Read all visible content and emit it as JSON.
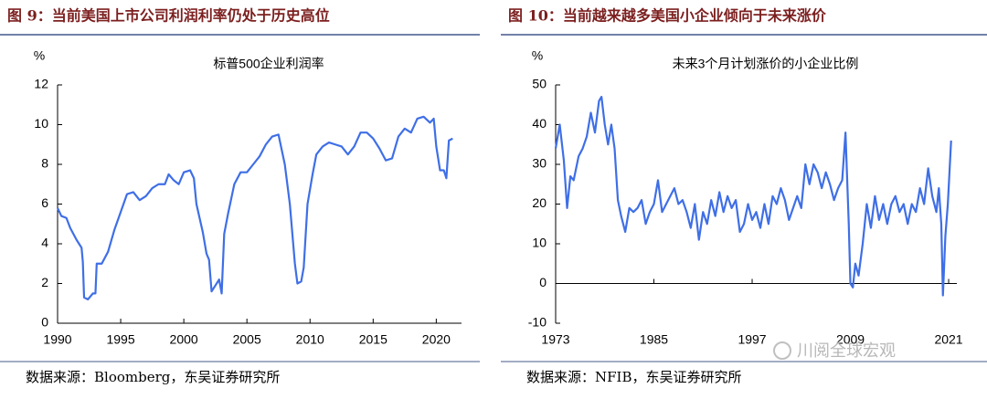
{
  "chart_data": [
    {
      "type": "line",
      "figure_title": "图 9：当前美国上市公司利润利率仍处于历史高位",
      "title": "标普500企业利润率",
      "y_label": "%",
      "source": "数据来源：Bloomberg，东吴证券研究所",
      "x": [
        1990.0,
        1990.3,
        1990.7,
        1991.0,
        1991.5,
        1991.9,
        1992.0,
        1992.1,
        1992.4,
        1992.8,
        1993.0,
        1993.1,
        1993.5,
        1994.0,
        1994.5,
        1995.0,
        1995.5,
        1996.0,
        1996.5,
        1997.0,
        1997.5,
        1998.0,
        1998.5,
        1998.8,
        1999.2,
        1999.6,
        2000.0,
        2000.5,
        2000.8,
        2001.0,
        2001.5,
        2001.8,
        2002.0,
        2002.2,
        2002.5,
        2002.8,
        2003.0,
        2003.2,
        2003.5,
        2004.0,
        2004.5,
        2005.0,
        2005.5,
        2006.0,
        2006.5,
        2007.0,
        2007.5,
        2007.8,
        2008.0,
        2008.4,
        2008.8,
        2009.0,
        2009.3,
        2009.5,
        2009.8,
        2010.2,
        2010.5,
        2011.0,
        2011.5,
        2012.0,
        2012.5,
        2013.0,
        2013.5,
        2014.0,
        2014.5,
        2015.0,
        2015.5,
        2016.0,
        2016.5,
        2017.0,
        2017.5,
        2018.0,
        2018.5,
        2019.0,
        2019.5,
        2019.8,
        2020.0,
        2020.3,
        2020.6,
        2020.8,
        2021.0,
        2021.3
      ],
      "series": [
        {
          "color": "#3f6fe6",
          "values": [
            5.8,
            5.4,
            5.3,
            4.8,
            4.2,
            3.8,
            3.1,
            1.3,
            1.2,
            1.5,
            1.5,
            3.0,
            3.0,
            3.6,
            4.7,
            5.6,
            6.5,
            6.6,
            6.2,
            6.4,
            6.8,
            7.0,
            7.0,
            7.5,
            7.2,
            7.0,
            7.6,
            7.7,
            7.3,
            6.0,
            4.6,
            3.5,
            3.2,
            1.6,
            1.9,
            2.2,
            1.5,
            4.5,
            5.5,
            7.0,
            7.6,
            7.6,
            8.0,
            8.4,
            9.0,
            9.4,
            9.5,
            8.6,
            8.0,
            6.0,
            3.0,
            2.0,
            2.1,
            2.8,
            6.0,
            7.5,
            8.5,
            8.9,
            9.1,
            9.0,
            8.9,
            8.5,
            8.9,
            9.6,
            9.6,
            9.3,
            8.8,
            8.2,
            8.3,
            9.4,
            9.8,
            9.6,
            10.3,
            10.4,
            10.1,
            10.3,
            8.9,
            7.7,
            7.7,
            7.3,
            9.2,
            9.3
          ]
        }
      ],
      "xlim": [
        1990,
        2022
      ],
      "xticks": [
        1990,
        1995,
        2000,
        2005,
        2010,
        2015,
        2020
      ],
      "ylim": [
        0,
        12
      ],
      "yticks": [
        0,
        2,
        4,
        6,
        8,
        10,
        12
      ],
      "grid": false
    },
    {
      "type": "line",
      "figure_title": "图 10：当前越来越多美国小企业倾向于未来涨价",
      "title": "未来3个月计划涨价的小企业比例",
      "y_label": "%",
      "source": "数据来源：NFIB，东吴证券研究所",
      "x": [
        1973.0,
        1973.5,
        1974.0,
        1974.4,
        1974.8,
        1975.2,
        1975.8,
        1976.3,
        1976.8,
        1977.3,
        1977.8,
        1978.3,
        1978.6,
        1979.0,
        1979.4,
        1979.8,
        1980.2,
        1980.6,
        1981.0,
        1981.5,
        1982.0,
        1982.5,
        1983.0,
        1983.5,
        1984.0,
        1984.5,
        1985.0,
        1985.5,
        1986.0,
        1986.5,
        1987.0,
        1987.5,
        1988.0,
        1988.5,
        1989.0,
        1989.5,
        1990.0,
        1990.5,
        1991.0,
        1991.5,
        1992.0,
        1992.5,
        1993.0,
        1993.5,
        1994.0,
        1994.5,
        1995.0,
        1995.5,
        1996.0,
        1996.5,
        1997.0,
        1997.5,
        1998.0,
        1998.5,
        1999.0,
        1999.5,
        2000.0,
        2000.5,
        2001.0,
        2001.5,
        2002.0,
        2002.5,
        2003.0,
        2003.5,
        2004.0,
        2004.5,
        2005.0,
        2005.5,
        2006.0,
        2006.5,
        2007.0,
        2007.5,
        2008.0,
        2008.4,
        2008.8,
        2009.0,
        2009.3,
        2009.6,
        2010.0,
        2010.5,
        2011.0,
        2011.5,
        2012.0,
        2012.5,
        2013.0,
        2013.5,
        2014.0,
        2014.5,
        2015.0,
        2015.5,
        2016.0,
        2016.5,
        2017.0,
        2017.5,
        2018.0,
        2018.5,
        2019.0,
        2019.5,
        2019.8,
        2020.1,
        2020.3,
        2020.6,
        2020.9,
        2021.1,
        2021.3
      ],
      "series": [
        {
          "color": "#3f6fe6",
          "values": [
            34,
            40,
            31,
            19,
            27,
            26,
            32,
            34,
            37,
            43,
            38,
            46,
            47,
            40,
            35,
            40,
            34,
            21,
            17,
            13,
            19,
            18,
            19,
            21,
            15,
            18,
            20,
            26,
            18,
            20,
            22,
            24,
            20,
            21,
            18,
            14,
            20,
            11,
            18,
            15,
            21,
            17,
            23,
            18,
            22,
            19,
            21,
            13,
            15,
            20,
            16,
            18,
            14,
            20,
            15,
            22,
            20,
            24,
            21,
            16,
            19,
            22,
            19,
            30,
            25,
            30,
            28,
            24,
            28,
            25,
            21,
            24,
            26,
            38,
            15,
            0,
            -1,
            5,
            2,
            10,
            20,
            14,
            22,
            16,
            20,
            15,
            20,
            22,
            18,
            20,
            15,
            20,
            18,
            24,
            20,
            29,
            22,
            18,
            24,
            15,
            -3,
            12,
            20,
            28,
            36
          ]
        }
      ],
      "xlim": [
        1973,
        2022
      ],
      "xticks": [
        1973,
        1985,
        1997,
        2009,
        2021
      ],
      "ylim": [
        -10,
        50
      ],
      "yticks": [
        -10,
        0,
        10,
        20,
        30,
        40,
        50
      ],
      "grid": false
    }
  ],
  "watermark": "川阅全球宏观"
}
